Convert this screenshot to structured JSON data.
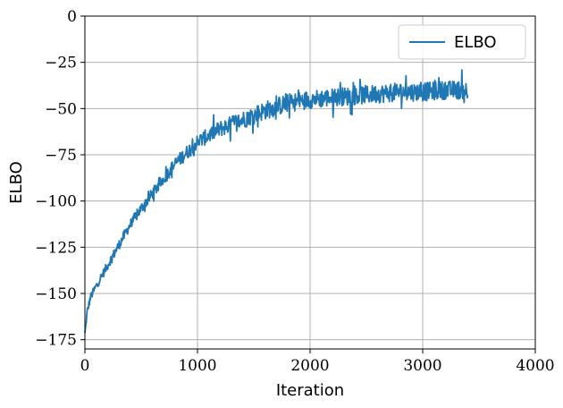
{
  "chart_data": {
    "type": "line",
    "xlabel": "Iteration",
    "ylabel": "ELBO",
    "xlim": [
      0,
      4000
    ],
    "ylim": [
      -180,
      0
    ],
    "x_ticks": [
      0,
      1000,
      2000,
      3000,
      4000
    ],
    "x_tick_labels": [
      "0",
      "1000",
      "2000",
      "3000",
      "4000"
    ],
    "y_ticks": [
      0,
      -25,
      -50,
      -75,
      -100,
      -125,
      -150,
      -175
    ],
    "y_tick_labels": [
      "0",
      "−25",
      "−50",
      "−75",
      "−100",
      "−125",
      "−150",
      "−175"
    ],
    "grid": true,
    "legend_position": "top-right",
    "series": [
      {
        "name": "ELBO",
        "color": "#1f77b4",
        "x": [
          0,
          20,
          50,
          100,
          200,
          300,
          400,
          500,
          600,
          700,
          800,
          900,
          1000,
          1200,
          1400,
          1600,
          1800,
          2000,
          2200,
          2400,
          2600,
          2800,
          3000,
          3200,
          3400
        ],
        "y": [
          -172,
          -160,
          -152,
          -146,
          -135,
          -124,
          -113,
          -104,
          -96,
          -88,
          -80,
          -74,
          -68,
          -61,
          -56,
          -51,
          -47,
          -45,
          -44,
          -43,
          -42,
          -41,
          -41,
          -40,
          -40
        ]
      }
    ]
  }
}
